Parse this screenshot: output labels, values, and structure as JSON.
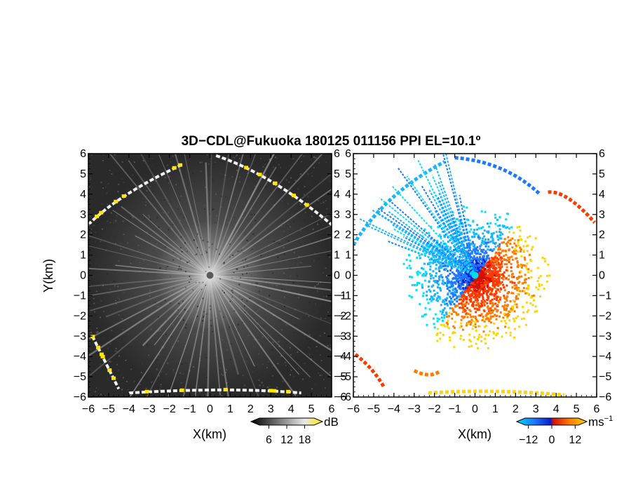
{
  "title": "3D−CDL@Fukuoka 180125 011156 PPI EL=10.1º",
  "colors": {
    "snr_background": "#2b2b2b",
    "velocity_negative": [
      "#0a1fd0",
      "#1e78ff",
      "#19b4ff",
      "#00e0ff"
    ],
    "velocity_positive": [
      "#d0100a",
      "#ff3a00",
      "#ff7a00",
      "#ffd400"
    ],
    "highlight": "#ffe600"
  },
  "chart_data": [
    {
      "type": "heatmap",
      "name": "snr-ppi",
      "xlabel": "X(km)",
      "ylabel": "Y(km)",
      "xlim": [
        -6,
        6
      ],
      "ylim": [
        -6,
        6
      ],
      "xticks": [
        "−6",
        "−5",
        "−4",
        "−3",
        "−2",
        "−1",
        "0",
        "1",
        "2",
        "3",
        "4",
        "5",
        "6"
      ],
      "yticks": [
        "6",
        "5",
        "4",
        "3",
        "2",
        "1",
        "0",
        "−1",
        "−2",
        "−3",
        "−4",
        "−5",
        "−6"
      ],
      "colorbar": {
        "unit": "dB",
        "ticks": [
          "6",
          "12",
          "18"
        ],
        "range": [
          0,
          24
        ],
        "colors": [
          "#000000",
          "#ffffff",
          "#ffe600"
        ]
      },
      "range_ring_km": 6,
      "center_km": [
        0,
        0
      ],
      "strong_echo_arcs": [
        {
          "from": [
            -6,
            2.5
          ],
          "via": [
            -4.5,
            4.0
          ],
          "to": [
            -1.3,
            5.5
          ]
        },
        {
          "from": [
            0.3,
            5.9
          ],
          "via": [
            3.0,
            5.0
          ],
          "to": [
            6,
            2.5
          ]
        },
        {
          "from": [
            -5.8,
            -3.0
          ],
          "via": [
            -5.0,
            -4.6
          ],
          "to": [
            -4.5,
            -5.6
          ]
        },
        {
          "from": [
            -4.0,
            -5.8
          ],
          "via": [
            1.0,
            -5.5
          ],
          "to": [
            4.5,
            -5.8
          ]
        }
      ]
    },
    {
      "type": "heatmap",
      "name": "radial-velocity-ppi",
      "xlabel": "X(km)",
      "ylabel": "",
      "xlim": [
        -6,
        6
      ],
      "ylim": [
        -6,
        6
      ],
      "xticks": [
        "−6",
        "−5",
        "−4",
        "−3",
        "−2",
        "−1",
        "0",
        "1",
        "2",
        "3",
        "4",
        "5",
        "6"
      ],
      "yticks": [
        "6",
        "5",
        "4",
        "3",
        "2",
        "1",
        "0",
        "−1",
        "−2",
        "−3",
        "−4",
        "−5",
        "−6"
      ],
      "colorbar": {
        "unit": "ms",
        "unit_exp": "−1",
        "ticks": [
          "−12",
          "0",
          "12"
        ],
        "range": [
          -18,
          18
        ]
      },
      "center_km": [
        0,
        0
      ],
      "features": [
        {
          "label": "negative velocities to the west / north-west",
          "sign": -1
        },
        {
          "label": "positive velocities to the east / south-east",
          "sign": 1
        }
      ]
    }
  ]
}
